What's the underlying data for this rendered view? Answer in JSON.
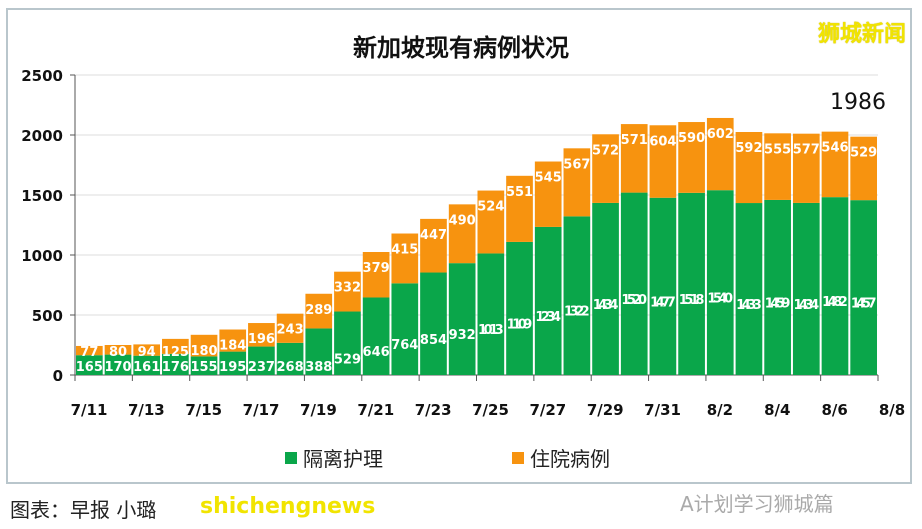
{
  "brand": "狮城新闻",
  "caption": "图表：早报 小璐",
  "overlay_text": "shichengnews",
  "watermark": "A计划学习狮城篇",
  "chart_data": {
    "type": "bar",
    "stacked": true,
    "title": "新加坡现有病例状况",
    "annotation": "1986",
    "categories": [
      "7/11",
      "7/12",
      "7/13",
      "7/14",
      "7/15",
      "7/16",
      "7/17",
      "7/18",
      "7/19",
      "7/20",
      "7/21",
      "7/22",
      "7/23",
      "7/24",
      "7/25",
      "7/26",
      "7/27",
      "7/28",
      "7/29",
      "7/30",
      "7/31",
      "8/1",
      "8/2",
      "8/3",
      "8/4",
      "8/5",
      "8/6",
      "8/7"
    ],
    "tick_labels": [
      "7/11",
      "7/13",
      "7/15",
      "7/17",
      "7/19",
      "7/21",
      "7/23",
      "7/25",
      "7/27",
      "7/29",
      "7/31",
      "8/2",
      "8/4",
      "8/6",
      "8/8"
    ],
    "y_ticks": [
      0,
      500,
      1000,
      1500,
      2000,
      2500
    ],
    "ylim": [
      0,
      2500
    ],
    "grid": true,
    "legend_position": "bottom",
    "series": [
      {
        "name": "隔离护理",
        "color": "#0aa64a",
        "values": [
          165,
          170,
          161,
          176,
          155,
          195,
          237,
          268,
          388,
          529,
          646,
          764,
          854,
          932,
          1013,
          1109,
          1234,
          1322,
          1434,
          1520,
          1477,
          1518,
          1540,
          1433,
          1459,
          1434,
          1482,
          1457
        ]
      },
      {
        "name": "住院病例",
        "color": "#f7930f",
        "values": [
          77,
          80,
          94,
          125,
          180,
          184,
          196,
          243,
          289,
          332,
          379,
          415,
          447,
          490,
          524,
          551,
          545,
          567,
          572,
          571,
          604,
          590,
          602,
          592,
          555,
          577,
          546,
          529
        ]
      }
    ]
  }
}
